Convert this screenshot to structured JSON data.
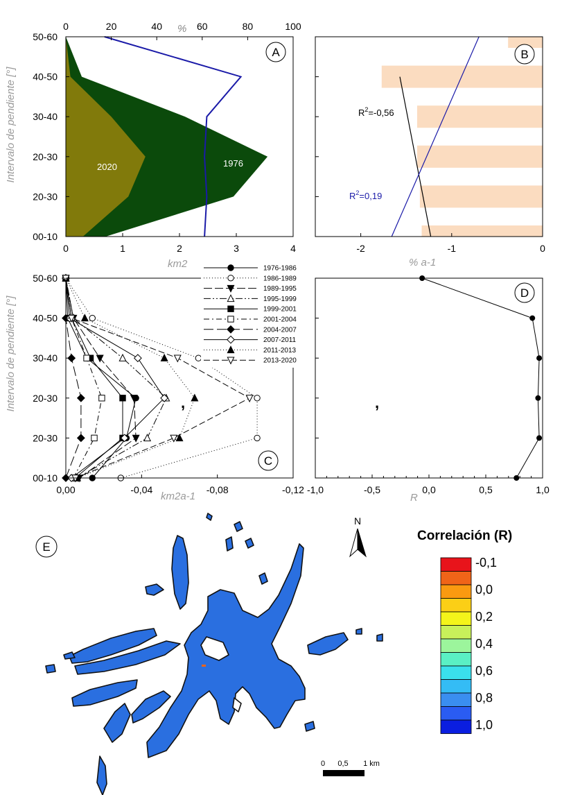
{
  "chart_data": [
    {
      "panel": "A",
      "type": "area",
      "categories": [
        "00-10",
        "20-30",
        "20-30",
        "30-40",
        "40-50",
        "50-60"
      ],
      "xlabel": "km2",
      "ylabel": "Intervalo de pendiente [°]",
      "xlim": [
        0,
        4
      ],
      "x_ticks": [
        "0",
        "1",
        "2",
        "3",
        "4"
      ],
      "secondary_axis": {
        "label": "%",
        "ticks": [
          "0",
          "20",
          "40",
          "60",
          "80",
          "100"
        ],
        "lim": [
          0,
          100
        ]
      },
      "series": [
        {
          "name": "1976",
          "color": "#0b4a0b",
          "values": [
            0.7,
            2.95,
            3.55,
            2.1,
            0.28,
            0.0
          ]
        },
        {
          "name": "2020",
          "color": "#817a0b",
          "values": [
            0.3,
            1.1,
            1.4,
            0.8,
            0.08,
            0.0
          ]
        },
        {
          "name": "%",
          "color": "#1a1aa8",
          "axis": "secondary",
          "values": [
            61,
            62,
            61,
            62,
            77,
            17
          ]
        }
      ]
    },
    {
      "panel": "B",
      "type": "bar",
      "categories": [
        "00-10",
        "20-30",
        "20-30",
        "30-40",
        "40-50",
        "50-60"
      ],
      "xlabel": "% a-1",
      "xlim": [
        -2.5,
        0
      ],
      "x_ticks": [
        "-2",
        "-1",
        "0"
      ],
      "bar_color": "#fbdcc0",
      "values": [
        -1.33,
        -1.35,
        -1.38,
        -1.38,
        -1.77,
        -0.38
      ],
      "annotations": [
        {
          "text": "R",
          "sup": "2",
          "rest": "=-0,56",
          "color": "#000000"
        },
        {
          "text": "R",
          "sup": "2",
          "rest": "=0,19",
          "color": "#1a1aa8"
        }
      ],
      "trend_lines": [
        {
          "color": "#000000",
          "from": [
            -1.57,
            "40-50"
          ],
          "to": [
            -1.23,
            "00-10"
          ]
        },
        {
          "color": "#1a1aa8",
          "from": [
            -0.7,
            "50-60"
          ],
          "to": [
            -1.66,
            "00-10"
          ]
        }
      ]
    },
    {
      "panel": "C",
      "type": "line",
      "categories": [
        "00-10",
        "20-30",
        "20-30",
        "30-40",
        "40-50",
        "50-60"
      ],
      "xlabel": "km2a-1",
      "ylabel": "Intervalo de pendiente [°]",
      "xlim": [
        0,
        -0.12
      ],
      "x_ticks": [
        "0,00",
        "-0,04",
        "-0,08",
        "-0,12"
      ],
      "series": [
        {
          "name": "1976-1986",
          "marker": "filled-circle",
          "dash": "",
          "values": [
            -0.014,
            -0.032,
            -0.037,
            -0.011,
            -0.001,
            0.0
          ]
        },
        {
          "name": "1986-1989",
          "marker": "open-circle",
          "dash": "1,3",
          "values": [
            -0.029,
            -0.101,
            -0.101,
            -0.07,
            -0.014,
            0.0
          ]
        },
        {
          "name": "1989-1995",
          "marker": "filled-triangle-down",
          "dash": "12,4",
          "values": [
            -0.007,
            -0.037,
            -0.036,
            -0.018,
            -0.004,
            0.0
          ]
        },
        {
          "name": "1995-1999",
          "marker": "open-triangle-up",
          "dash": "10,3,2,3,2,3",
          "values": [
            -0.006,
            -0.043,
            -0.053,
            -0.03,
            -0.004,
            0.0
          ]
        },
        {
          "name": "1999-2001",
          "marker": "filled-square",
          "dash": "",
          "values": [
            -0.005,
            -0.03,
            -0.03,
            -0.013,
            -0.003,
            0.0
          ]
        },
        {
          "name": "2001-2004",
          "marker": "open-square",
          "dash": "8,4,2,4",
          "values": [
            -0.004,
            -0.015,
            -0.019,
            -0.011,
            -0.003,
            0.0
          ]
        },
        {
          "name": "2004-2007",
          "marker": "filled-diamond",
          "dash": "14,5",
          "values": [
            -0.0,
            -0.008,
            -0.008,
            -0.003,
            0.0,
            0.0
          ]
        },
        {
          "name": "2007-2011",
          "marker": "open-diamond",
          "dash": "",
          "values": [
            -0.003,
            -0.031,
            -0.052,
            -0.038,
            -0.002,
            0.0
          ]
        },
        {
          "name": "2011-2013",
          "marker": "filled-triangle-up",
          "dash": "1,3",
          "values": [
            -0.006,
            -0.06,
            -0.068,
            -0.052,
            -0.01,
            0.0
          ]
        },
        {
          "name": "2013-2020",
          "marker": "open-triangle-down",
          "dash": "9,4",
          "values": [
            -0.005,
            -0.057,
            -0.097,
            -0.059,
            -0.003,
            0.0
          ]
        }
      ],
      "stray_mark": ","
    },
    {
      "panel": "D",
      "type": "line",
      "categories": [
        "00-10",
        "20-30",
        "20-30",
        "30-40",
        "40-50",
        "50-60"
      ],
      "xlabel": "R",
      "xlim": [
        -1.0,
        1.0
      ],
      "x_ticks": [
        "-1,0",
        "-0,5",
        "0,0",
        "0,5",
        "1,0"
      ],
      "values": [
        0.77,
        0.97,
        0.96,
        0.97,
        0.91,
        -0.06
      ],
      "stray_mark": ","
    }
  ],
  "panel_letters": [
    "A",
    "B",
    "C",
    "D",
    "E"
  ],
  "map": {
    "north_label": "N",
    "scale_labels": [
      "0",
      "0,5",
      "1 km"
    ],
    "fill_color": "#2a6fe0",
    "legend_title": "Correlación (R)",
    "legend_entries": [
      {
        "label": "-0,1",
        "color": "#e8141b"
      },
      {
        "label": "",
        "color": "#f06418"
      },
      {
        "label": "0,0",
        "color": "#fa9a10"
      },
      {
        "label": "",
        "color": "#fbcf16"
      },
      {
        "label": "0,2",
        "color": "#f4f41a"
      },
      {
        "label": "",
        "color": "#c8f05a"
      },
      {
        "label": "0,4",
        "color": "#9cf59c"
      },
      {
        "label": "",
        "color": "#5af0c4"
      },
      {
        "label": "0,6",
        "color": "#3ae0ec"
      },
      {
        "label": "",
        "color": "#34bcf5"
      },
      {
        "label": "0,8",
        "color": "#3a8ef0"
      },
      {
        "label": "",
        "color": "#2a5cf2"
      },
      {
        "label": "1,0",
        "color": "#0a1ee0"
      }
    ]
  }
}
